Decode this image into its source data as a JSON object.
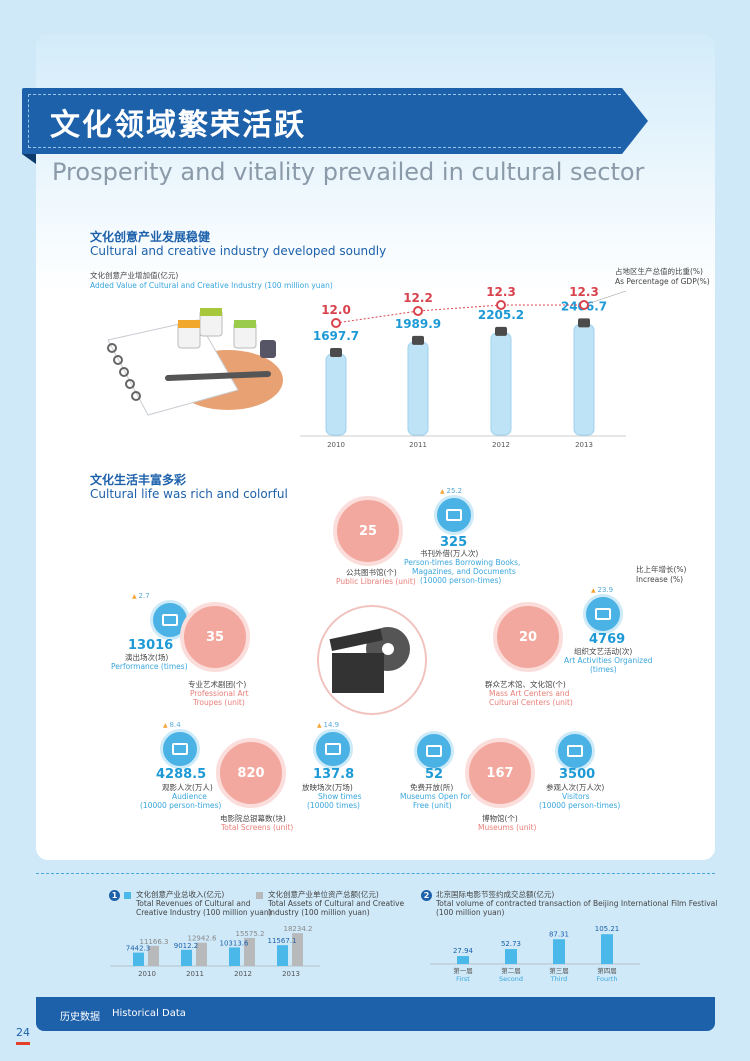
{
  "colors": {
    "primary": "#1d61ab",
    "accent": "#1d9ad6",
    "pink": "#f2a89e",
    "bar_blue": "#4ab8e8",
    "bar_gray": "#b7b9bb",
    "gdp_red": "#d9434e"
  },
  "header": {
    "title_cn": "文化领域繁荣活跃",
    "title_en": "Prosperity and vitality prevailed in cultural sector"
  },
  "section1": {
    "title_cn": "文化创意产业发展稳健",
    "title_en": "Cultural and creative industry developed soundly",
    "metric_cn": "文化创意产业增加值(亿元)",
    "metric_en": "Added Value of Cultural and Creative Industry (100 million yuan)",
    "gdp_cn": "占地区生产总值的比重(%)",
    "gdp_en": "As Percentage of GDP(%)"
  },
  "section2": {
    "title_cn": "文化生活丰富多彩",
    "title_en": "Cultural life was rich and colorful",
    "inc_cn": "比上年增长(%)",
    "inc_en": "Increase (%)"
  },
  "stats": {
    "libraries": {
      "value": "25",
      "cn": "公共图书馆(个)",
      "en": "Public Libraries (unit)"
    },
    "borrowing": {
      "value": "325",
      "inc": "25.2",
      "cn": "书刊外借(万人次)",
      "en1": "Person-times Borrowing Books,",
      "en2": "Magazines, and Documents",
      "en3": "(10000 person-times)"
    },
    "troupes": {
      "value": "35",
      "cn": "专业艺术剧团(个)",
      "en1": "Professional Art",
      "en2": "Troupes (unit)"
    },
    "performance": {
      "value": "13016",
      "inc": "2.7",
      "cn": "演出场次(场)",
      "en": "Performance (times)"
    },
    "masscenters": {
      "value": "20",
      "cn": "群众艺术馆、文化馆(个)",
      "en1": "Mass Art Centers and",
      "en2": "Cultural Centers (unit)"
    },
    "activities": {
      "value": "4769",
      "inc": "23.9",
      "cn": "组织文艺活动(次)",
      "en1": "Art Activities Organized",
      "en2": "(times)"
    },
    "audience": {
      "value": "4288.5",
      "inc": "8.4",
      "cn": "观影人次(万人)",
      "en1": "Audience",
      "en2": "(10000 person-times)"
    },
    "screens": {
      "value": "820",
      "cn": "电影院总银幕数(块)",
      "en": "Total Screens (unit)"
    },
    "showtimes": {
      "value": "137.8",
      "inc": "14.9",
      "cn": "放映场次(万场)",
      "en1": "Show times",
      "en2": "(10000 times)"
    },
    "freemuseums": {
      "value": "52",
      "cn": "免费开放(所)",
      "en1": "Museums Open for",
      "en2": "Free (unit)"
    },
    "museums": {
      "value": "167",
      "cn": "博物馆(个)",
      "en": "Museums (unit)"
    },
    "visitors": {
      "value": "3500",
      "cn": "参观人次(万人次)",
      "en1": "Visitors",
      "en2": "(10000 person-times)"
    }
  },
  "bottom": {
    "badge1": "1",
    "badge2": "2",
    "rev_cn": "文化创意产业总收入(亿元)",
    "rev_en1": "Total Revenues of Cultural and",
    "rev_en2": "Creative Industry (100 million yuan)",
    "assets_cn": "文化创意产业单位资产总额(亿元)",
    "assets_en1": "Total Assets of Cultural and Creative",
    "assets_en2": "Industry (100 million yuan)",
    "film_cn": "北京国际电影节签约成交总额(亿元)",
    "film_en1": "Total volume of contracted transaction of Beijing International Film Festival",
    "film_en2": "(100 million yuan)"
  },
  "footer": {
    "label_cn": "历史数据",
    "label_en": "Historical Data",
    "page": "24"
  },
  "chart_data": [
    {
      "type": "bar",
      "categories": [
        "2010",
        "2011",
        "2012",
        "2013"
      ],
      "series": [
        {
          "name": "文化创意产业增加值(亿元)",
          "values": [
            1697.7,
            1989.9,
            2205.2,
            2406.7
          ]
        },
        {
          "name": "占地区生产总值的比重(%)",
          "values": [
            12.0,
            12.2,
            12.3,
            12.3
          ]
        }
      ],
      "value_labels": [
        "1697.7",
        "1989.9",
        "2205.2",
        "2406.7"
      ],
      "pct_labels": [
        "12.0",
        "12.2",
        "12.3",
        "12.3"
      ]
    },
    {
      "type": "bar",
      "categories": [
        "2010",
        "2011",
        "2012",
        "2013"
      ],
      "series": [
        {
          "name": "文化创意产业总收入(亿元)",
          "values": [
            7442.3,
            9012.2,
            10313.6,
            11567.1
          ],
          "labels": [
            "7442.3",
            "9012.2",
            "10313.6",
            "11567.1"
          ]
        },
        {
          "name": "文化创意产业单位资产总额(亿元)",
          "values": [
            11166.3,
            12942.6,
            15575.2,
            18234.2
          ],
          "labels": [
            "11166.3",
            "12942.6",
            "15575.2",
            "18234.2"
          ]
        }
      ]
    },
    {
      "type": "bar",
      "categories": [
        "第一届 First",
        "第二届 Second",
        "第三届 Third",
        "第四届 Fourth"
      ],
      "cat_cn": [
        "第一届",
        "第二届",
        "第三届",
        "第四届"
      ],
      "cat_en": [
        "First",
        "Second",
        "Third",
        "Fourth"
      ],
      "values": [
        27.94,
        52.73,
        87.31,
        105.21
      ],
      "labels": [
        "27.94",
        "52.73",
        "87.31",
        "105.21"
      ]
    }
  ]
}
